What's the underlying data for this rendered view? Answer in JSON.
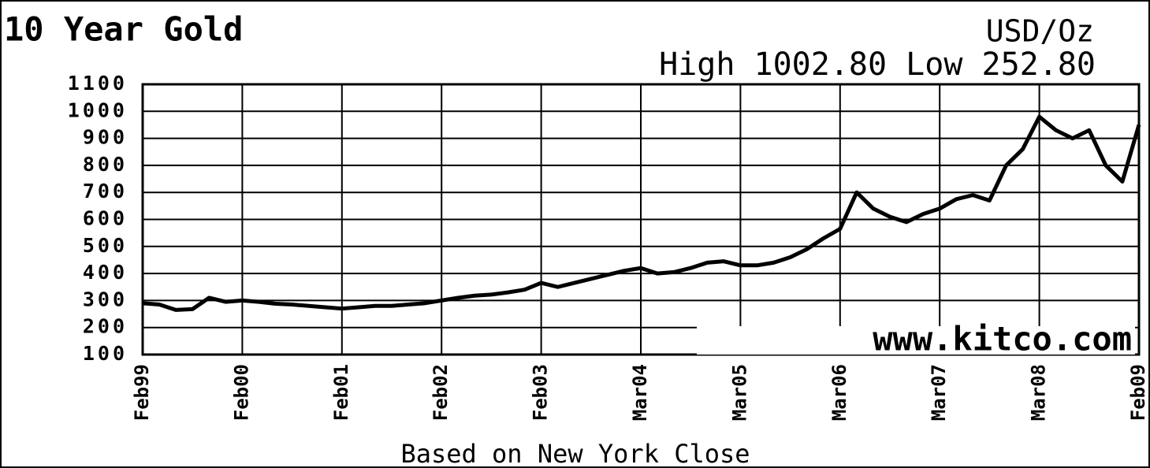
{
  "chart_data": {
    "type": "line",
    "title": "10 Year Gold",
    "subtitle": "USD/Oz",
    "annotations": [
      "High 1002.80 Low 252.80",
      "www.kitco.com"
    ],
    "x_label": "Based on New York Close",
    "categories": [
      "Feb99",
      null,
      null,
      null,
      null,
      null,
      "Feb00",
      null,
      null,
      null,
      null,
      null,
      "Feb01",
      null,
      null,
      null,
      null,
      null,
      "Feb02",
      null,
      null,
      null,
      null,
      null,
      "Feb03",
      null,
      null,
      null,
      null,
      null,
      "Mar04",
      null,
      null,
      null,
      null,
      null,
      "Mar05",
      null,
      null,
      null,
      null,
      null,
      "Mar06",
      null,
      null,
      null,
      null,
      null,
      "Mar07",
      null,
      null,
      null,
      null,
      null,
      "Mar08",
      null,
      null,
      null,
      null,
      null,
      "Feb09"
    ],
    "values": [
      290,
      285,
      265,
      268,
      310,
      295,
      300,
      295,
      288,
      285,
      280,
      275,
      270,
      275,
      280,
      280,
      285,
      290,
      300,
      310,
      318,
      322,
      330,
      340,
      365,
      350,
      365,
      380,
      395,
      410,
      420,
      400,
      405,
      420,
      440,
      445,
      430,
      430,
      440,
      460,
      490,
      530,
      565,
      700,
      640,
      610,
      590,
      620,
      640,
      675,
      690,
      670,
      800,
      860,
      980,
      930,
      900,
      930,
      800,
      740,
      950
    ],
    "color": "#000000",
    "ylim": [
      100,
      1100
    ],
    "yticks": [
      100,
      200,
      300,
      400,
      500,
      600,
      700,
      800,
      900,
      1000,
      1100
    ],
    "grid": true
  }
}
